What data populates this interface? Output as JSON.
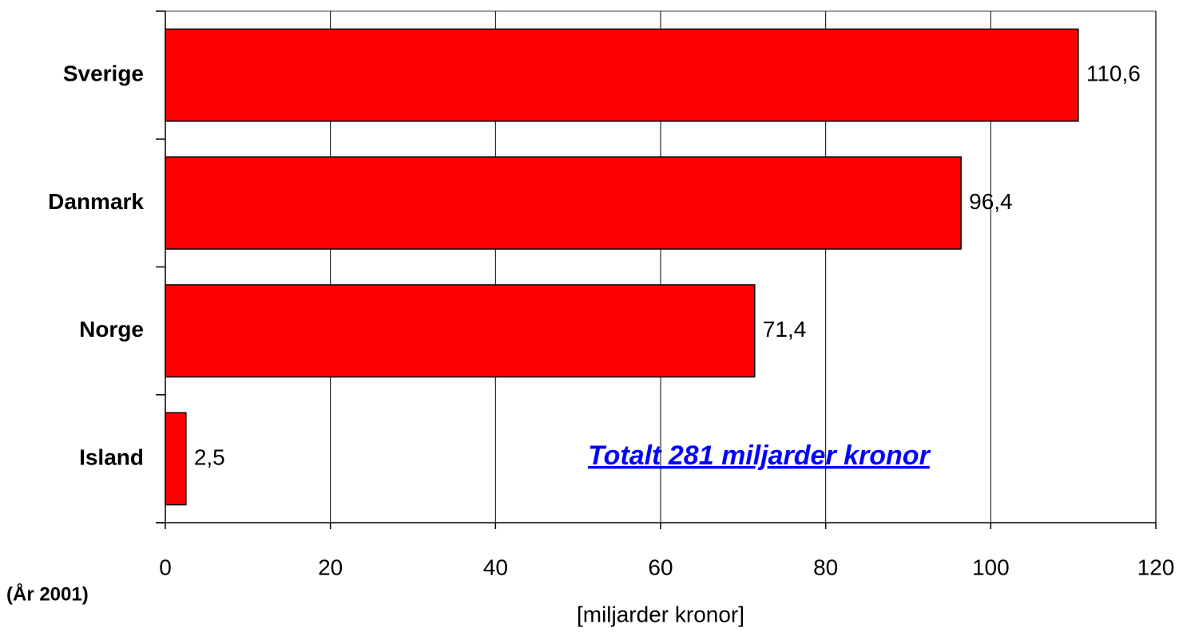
{
  "chart_data": {
    "type": "barh",
    "categories": [
      "Sverige",
      "Danmark",
      "Norge",
      "Island"
    ],
    "values": [
      110.6,
      96.4,
      71.4,
      2.5
    ],
    "value_labels": [
      "110,6",
      "96,4",
      "71,4",
      "2,5"
    ],
    "color": "#ff0000",
    "xlim": [
      0,
      120
    ],
    "xticks": [
      0,
      20,
      40,
      60,
      80,
      100,
      120
    ],
    "grid": true,
    "xlabel": "[miljarder kronor]",
    "annotations": [
      "Totalt 281 miljarder kronor",
      "(År 2001)"
    ]
  }
}
